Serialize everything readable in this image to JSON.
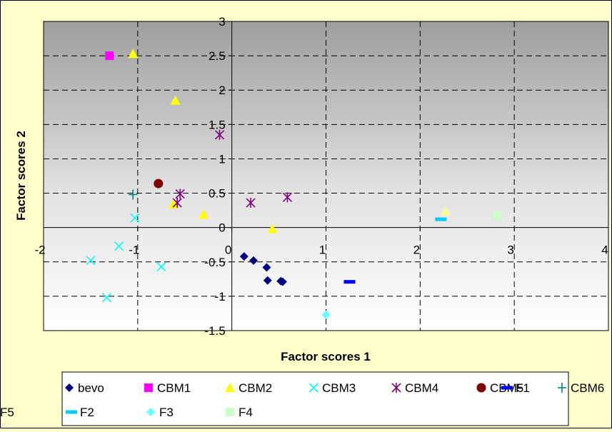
{
  "chart_data": {
    "type": "scatter",
    "title": "",
    "xlabel": "Factor scores 1",
    "ylabel": "Factor scores 2",
    "xlim": [
      -2,
      4
    ],
    "ylim": [
      -1.5,
      3
    ],
    "x_ticks": [
      "-2",
      "-1",
      "0",
      "1",
      "2",
      "3",
      "4"
    ],
    "y_ticks": [
      "3",
      "2.5",
      "2",
      "1.5",
      "1",
      "0.5",
      "0",
      "-0.5",
      "-1",
      "-1.5"
    ],
    "grid": true,
    "legend_position": "bottom",
    "background": "gray-to-white gradient",
    "series": [
      {
        "name": "bevo",
        "marker": "diamond",
        "color": "#000080",
        "points": [
          [
            0.13,
            -0.42
          ],
          [
            0.23,
            -0.48
          ],
          [
            0.37,
            -0.58
          ],
          [
            0.38,
            -0.77
          ],
          [
            0.52,
            -0.78
          ],
          [
            0.54,
            -0.79
          ]
        ]
      },
      {
        "name": "CBM1",
        "marker": "square",
        "color": "#FF00FF",
        "points": [
          [
            -1.3,
            2.5
          ]
        ]
      },
      {
        "name": "CBM2",
        "marker": "triangle",
        "color": "#FFFF00",
        "points": [
          [
            -1.05,
            2.53
          ],
          [
            -0.6,
            1.85
          ],
          [
            -0.62,
            0.34
          ],
          [
            -0.3,
            0.19
          ],
          [
            0.43,
            -0.02
          ]
        ]
      },
      {
        "name": "CBM3",
        "marker": "x",
        "color": "#00FFFF",
        "points": [
          [
            -1.5,
            -0.48
          ],
          [
            -1.2,
            -0.27
          ],
          [
            -1.03,
            0.14
          ],
          [
            -0.75,
            -0.57
          ],
          [
            -1.33,
            -1.02
          ]
        ]
      },
      {
        "name": "CBM4",
        "marker": "star",
        "color": "#800080",
        "points": [
          [
            -0.13,
            1.35
          ],
          [
            -0.55,
            0.49
          ],
          [
            -0.58,
            0.36
          ],
          [
            0.2,
            0.36
          ],
          [
            0.59,
            0.44
          ]
        ]
      },
      {
        "name": "CBM5",
        "marker": "circle",
        "color": "#800000",
        "points": [
          [
            -0.78,
            0.64
          ]
        ]
      },
      {
        "name": "CBM6",
        "marker": "plus",
        "color": "#008080",
        "points": [
          [
            -1.05,
            0.48
          ]
        ]
      },
      {
        "name": "F1",
        "marker": "dash",
        "color": "#0000FF",
        "points": [
          [
            1.25,
            -0.79
          ]
        ]
      },
      {
        "name": "F2",
        "marker": "dash",
        "color": "#00CCFF",
        "points": [
          [
            2.22,
            0.12
          ]
        ]
      },
      {
        "name": "F3",
        "marker": "diamond",
        "color": "#66FFFF",
        "points": [
          [
            1.0,
            -1.27
          ]
        ]
      },
      {
        "name": "F4",
        "marker": "square",
        "color": "#CCFFCC",
        "points": [
          [
            2.82,
            0.17
          ]
        ]
      },
      {
        "name": "F5",
        "marker": "triangle",
        "color": "#FFFF99",
        "points": [
          [
            2.27,
            0.24
          ]
        ]
      }
    ]
  }
}
